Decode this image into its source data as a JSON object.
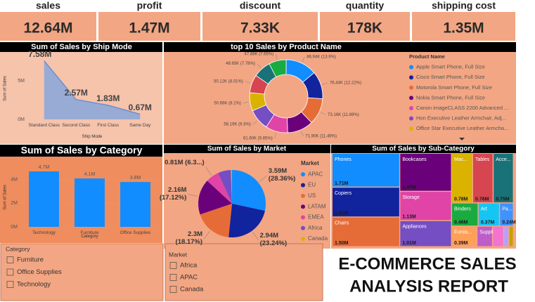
{
  "kpis": [
    {
      "label": "sales",
      "value": "12.64M"
    },
    {
      "label": "profit",
      "value": "1.47M"
    },
    {
      "label": "discount",
      "value": "7.33K"
    },
    {
      "label": "quantity",
      "value": "178K"
    },
    {
      "label": "shipping cost",
      "value": "1.35M"
    }
  ],
  "chart_data": [
    {
      "type": "area",
      "title": "Sum of Sales by Ship Mode",
      "x_label": "Ship Mode",
      "y_label": "Sum of Sales",
      "categories": [
        "Standard Class",
        "Second Class",
        "First Class",
        "Same Day"
      ],
      "values": [
        7.58,
        2.57,
        1.83,
        0.67
      ],
      "value_labels": [
        "7.58M",
        "2.57M",
        "1.83M",
        "0.67M"
      ],
      "color": "#8ea8d8",
      "ylim": [
        0,
        8
      ],
      "yticks": [
        {
          "value": 0,
          "label": "0M"
        },
        {
          "value": 5,
          "label": "5M"
        }
      ]
    },
    {
      "type": "donut",
      "title": "top 10 Sales by Product Name",
      "legend_title": "Product Name",
      "categories": [
        "Apple Smart Phone, Full Size",
        "Cisco Smart Phone, Full Size",
        "Motorola Smart Phone, Full Size",
        "Nokia Smart Phone, Full Size",
        "Canon imageCLASS 2200 Advanced ...",
        "Hon Executive Leather Armchair, Adj...",
        "Office Star Executive Leather Armcha...",
        null,
        null,
        null
      ],
      "values": [
        86.94,
        76.44,
        73.16,
        71.9,
        61.6,
        58.19,
        50.66,
        50.12,
        48.65,
        47.88
      ],
      "value_labels": [
        "86.94K (13.9%)",
        "76.44K (12.22%)",
        "73.16K (11.69%)",
        "71.90K (11.49%)",
        "61.60K (9.85%)",
        "58.19K (9.3%)",
        "50.66K (8.1%)",
        "50.12K (8.01%)",
        "48.65K (7.78%)",
        "47.88K (7.65%)"
      ],
      "colors": [
        "#118dff",
        "#12239e",
        "#e66c37",
        "#6b007b",
        "#e044a7",
        "#744ec2",
        "#d9b300",
        "#d64550",
        "#197278",
        "#1aab40"
      ]
    },
    {
      "type": "bar",
      "title": "Sum of Sales by Category",
      "x_label": "Category",
      "y_label": "Sum of Sales",
      "categories": [
        "Technology",
        "Furniture",
        "Office Supplies"
      ],
      "values": [
        4.7,
        4.1,
        3.8
      ],
      "value_labels": [
        "4.7M",
        "4.1M",
        "3.8M"
      ],
      "color": "#118dff",
      "ylim": [
        0,
        5
      ],
      "yticks": [
        {
          "value": 0,
          "label": "0M"
        },
        {
          "value": 2,
          "label": "2M"
        },
        {
          "value": 4,
          "label": "4M"
        }
      ]
    },
    {
      "type": "pie",
      "title": "Sum of Sales by Market",
      "legend_title": "Market",
      "categories": [
        "APAC",
        "EU",
        "US",
        "LATAM",
        "EMEA",
        "Africa",
        "Canada"
      ],
      "values": [
        3.59,
        2.94,
        2.3,
        2.16,
        0.81,
        0.78,
        0.07
      ],
      "value_labels": [
        "3.59M (28.36%)",
        "2.94M (23.24%)",
        "2.3M (18.17%)",
        "2.16M (17.12%)",
        "0.81M (6.3...)",
        null,
        null
      ],
      "colors": [
        "#118dff",
        "#12239e",
        "#e66c37",
        "#6b007b",
        "#e044a7",
        "#744ec2",
        "#d9b300"
      ]
    },
    {
      "type": "treemap",
      "title": "Sum of Sales by Sub-Category",
      "categories": [
        "Phones",
        "Copiers",
        "Chairs",
        "Bookcases",
        "Storage",
        "Appliances",
        "Mac...",
        "Tables",
        "Acce...",
        "Binders",
        "Art",
        "Pa...",
        "Furnis...",
        "Supplies",
        null,
        null,
        null
      ],
      "values": [
        1.71,
        1.51,
        1.5,
        1.47,
        1.13,
        1.01,
        0.78,
        0.76,
        0.75,
        0.46,
        0.37,
        0.24,
        0.39,
        0.24,
        0.17,
        0.08,
        0.07
      ],
      "value_labels": [
        "1.71M",
        "1.51M",
        "1.50M",
        "1.47M",
        "1.13M",
        "1.01M",
        "0.78M",
        "0.76M",
        "0.75M",
        "0.46M",
        "0.37M",
        "0.24M",
        "0.39M",
        null,
        null,
        null,
        null
      ],
      "colors": [
        "#118dff",
        "#12239e",
        "#e66c37",
        "#6b007b",
        "#e044a7",
        "#744ec2",
        "#d9b300",
        "#d64550",
        "#197278",
        "#1aab40",
        "#15c6f4",
        "#4092ff",
        "#ffa058",
        "#be5dc9",
        "#f472d0",
        "#b5a1ff",
        "#c4a200"
      ]
    }
  ],
  "slicers": [
    {
      "title": "Category",
      "items": [
        "Furniture",
        "Office Supplies",
        "Technology"
      ]
    },
    {
      "title": "Market",
      "items": [
        "Africa",
        "APAC",
        "Canada"
      ]
    }
  ],
  "report_title": [
    "E-COMMERCE SALES",
    "ANALYSIS REPORT"
  ]
}
